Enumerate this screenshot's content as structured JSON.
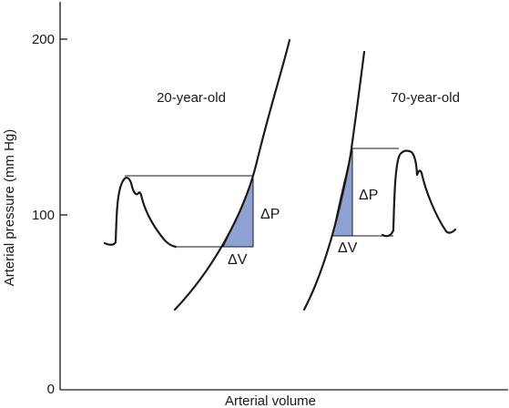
{
  "chart_data": {
    "type": "line",
    "xlabel": "Arterial volume",
    "ylabel": "Arterial pressure (mm Hg)",
    "y_ticks": [
      "0",
      "100",
      "200"
    ],
    "ylim": [
      0,
      215
    ],
    "grid": false,
    "series": [
      {
        "name": "20-year-old",
        "curve_points": [
          [
            1.0,
            44
          ],
          [
            1.5,
            62
          ],
          [
            2.0,
            86
          ],
          [
            2.4,
            118
          ],
          [
            2.7,
            155
          ],
          [
            2.9,
            200
          ]
        ],
        "pressure_pulse_range": [
          82,
          121
        ],
        "delta_P_label": "ΔP",
        "delta_V_label": "ΔV"
      },
      {
        "name": "70-year-old",
        "curve_points": [
          [
            2.2,
            44
          ],
          [
            2.6,
            70
          ],
          [
            2.9,
            100
          ],
          [
            3.12,
            138
          ],
          [
            3.3,
            190
          ]
        ],
        "pressure_pulse_range": [
          87,
          137
        ],
        "delta_P_label": "ΔP",
        "delta_V_label": "ΔV"
      }
    ]
  }
}
